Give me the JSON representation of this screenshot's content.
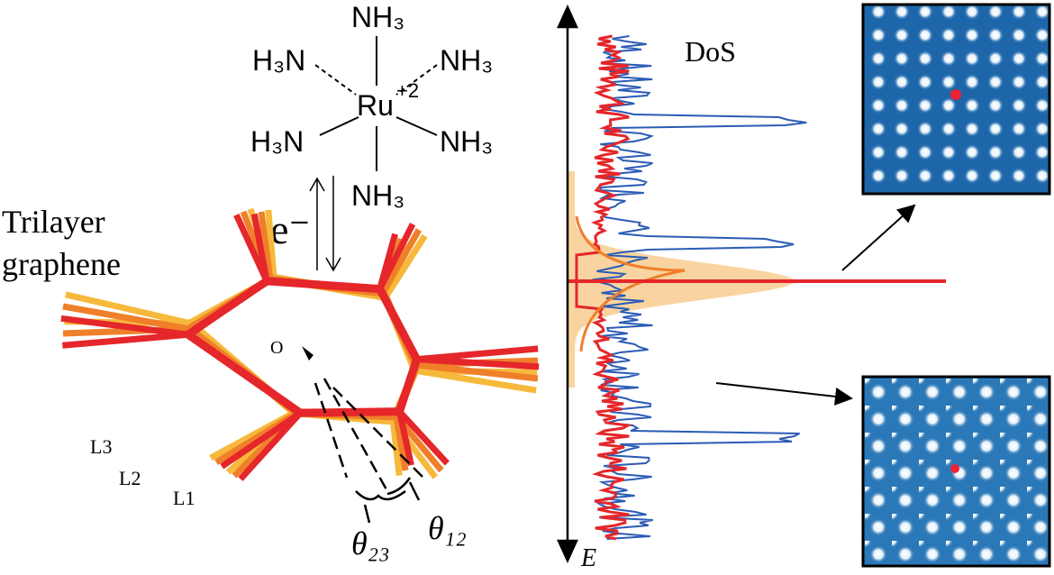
{
  "molecule": {
    "center": "Ru",
    "charge": "+2",
    "ligands": [
      "NH₃",
      "H₃N",
      "NH₃",
      "H₃N",
      "NH₃",
      "NH₃"
    ]
  },
  "electron": "e⁻",
  "graphene": {
    "title_line1": "Trilayer",
    "title_line2": "graphene",
    "layers": [
      "L3",
      "L2",
      "L1"
    ],
    "origin": "O",
    "angles": [
      "θ₂₃",
      "θ₁₂"
    ]
  },
  "dos": {
    "label": "DoS",
    "axis": "E"
  }
}
